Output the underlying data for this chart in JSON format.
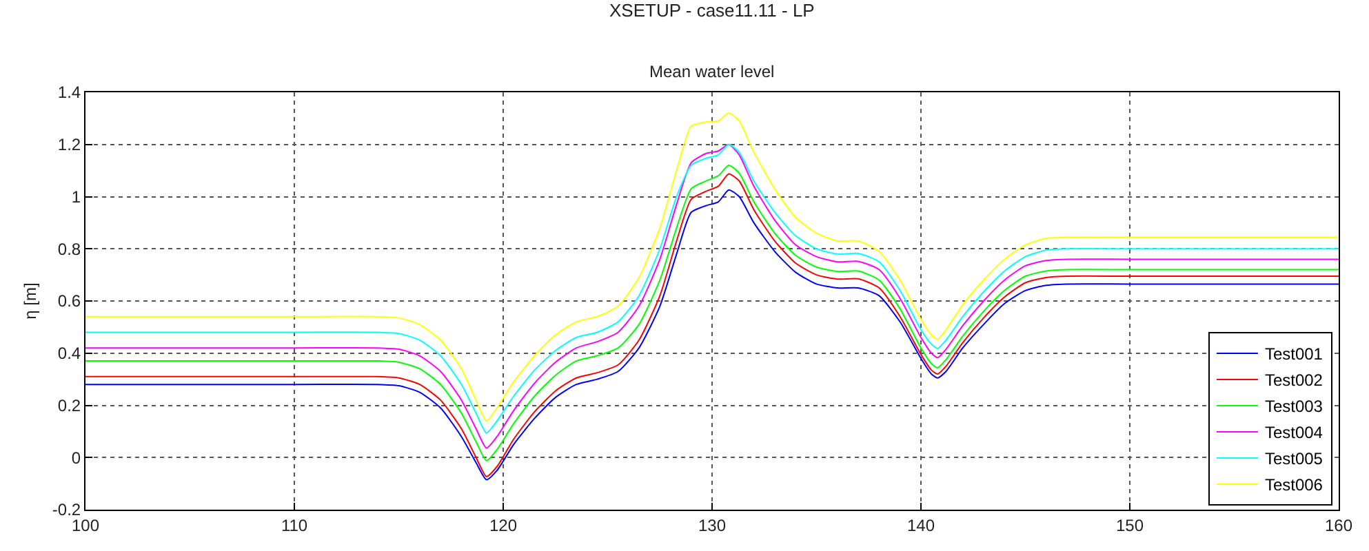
{
  "chart_data": {
    "type": "line",
    "title": "XSETUP - case11.11 - LP",
    "subtitle": "Mean water level",
    "ylabel": "η [m]",
    "x": [
      100,
      110,
      114,
      115,
      116,
      117,
      118,
      118.7,
      119.2,
      119.7,
      120.5,
      121.5,
      122.5,
      123.5,
      124.5,
      125.5,
      126.5,
      127.5,
      128.3,
      129,
      129.7,
      130.3,
      130.8,
      131.3,
      132,
      133,
      134,
      135,
      136,
      137,
      138,
      139,
      140,
      140.5,
      140.8,
      141.2,
      142,
      143,
      144,
      145,
      146,
      147,
      150,
      160
    ],
    "series": [
      {
        "name": "Test001",
        "color": "#0000ff",
        "values": [
          0.28,
          0.28,
          0.28,
          0.275,
          0.25,
          0.19,
          0.08,
          -0.02,
          -0.085,
          -0.05,
          0.05,
          0.15,
          0.23,
          0.28,
          0.3,
          0.33,
          0.42,
          0.58,
          0.78,
          0.94,
          0.965,
          0.98,
          1.026,
          1.0,
          0.9,
          0.79,
          0.71,
          0.665,
          0.65,
          0.65,
          0.62,
          0.52,
          0.38,
          0.32,
          0.305,
          0.33,
          0.42,
          0.51,
          0.59,
          0.64,
          0.66,
          0.665,
          0.665,
          0.665
        ]
      },
      {
        "name": "Test002",
        "color": "#ff0000",
        "values": [
          0.31,
          0.31,
          0.31,
          0.305,
          0.28,
          0.22,
          0.11,
          0.0,
          -0.073,
          -0.035,
          0.07,
          0.175,
          0.255,
          0.305,
          0.325,
          0.355,
          0.45,
          0.62,
          0.83,
          0.99,
          1.02,
          1.04,
          1.087,
          1.06,
          0.95,
          0.83,
          0.745,
          0.7,
          0.684,
          0.685,
          0.65,
          0.54,
          0.395,
          0.335,
          0.32,
          0.35,
          0.44,
          0.535,
          0.615,
          0.67,
          0.69,
          0.695,
          0.695,
          0.695
        ]
      },
      {
        "name": "Test003",
        "color": "#00ff00",
        "values": [
          0.37,
          0.37,
          0.37,
          0.365,
          0.34,
          0.28,
          0.17,
          0.06,
          -0.012,
          0.03,
          0.13,
          0.235,
          0.315,
          0.37,
          0.39,
          0.42,
          0.51,
          0.68,
          0.88,
          1.03,
          1.06,
          1.08,
          1.12,
          1.09,
          0.98,
          0.86,
          0.775,
          0.73,
          0.713,
          0.715,
          0.68,
          0.57,
          0.42,
          0.36,
          0.344,
          0.375,
          0.465,
          0.56,
          0.64,
          0.695,
          0.715,
          0.72,
          0.72,
          0.72
        ]
      },
      {
        "name": "Test004",
        "color": "#ff00ff",
        "values": [
          0.42,
          0.42,
          0.42,
          0.415,
          0.39,
          0.33,
          0.22,
          0.11,
          0.036,
          0.08,
          0.18,
          0.285,
          0.365,
          0.42,
          0.444,
          0.48,
          0.58,
          0.76,
          0.97,
          1.13,
          1.165,
          1.175,
          1.2,
          1.16,
          1.04,
          0.91,
          0.815,
          0.77,
          0.75,
          0.752,
          0.72,
          0.61,
          0.46,
          0.4,
          0.383,
          0.415,
          0.505,
          0.6,
          0.68,
          0.735,
          0.755,
          0.76,
          0.76,
          0.76
        ]
      },
      {
        "name": "Test005",
        "color": "#00ffff",
        "values": [
          0.48,
          0.48,
          0.48,
          0.475,
          0.45,
          0.39,
          0.28,
          0.17,
          0.094,
          0.14,
          0.235,
          0.335,
          0.41,
          0.46,
          0.48,
          0.52,
          0.62,
          0.8,
          1.0,
          1.12,
          1.147,
          1.16,
          1.2,
          1.17,
          1.06,
          0.94,
          0.85,
          0.8,
          0.78,
          0.782,
          0.75,
          0.64,
          0.49,
          0.435,
          0.418,
          0.45,
          0.54,
          0.635,
          0.715,
          0.77,
          0.795,
          0.8,
          0.8,
          0.8
        ]
      },
      {
        "name": "Test006",
        "color": "#ffff00",
        "values": [
          0.54,
          0.54,
          0.54,
          0.535,
          0.51,
          0.45,
          0.34,
          0.22,
          0.14,
          0.19,
          0.29,
          0.39,
          0.47,
          0.52,
          0.54,
          0.58,
          0.69,
          0.88,
          1.1,
          1.27,
          1.286,
          1.29,
          1.32,
          1.29,
          1.17,
          1.03,
          0.92,
          0.86,
          0.83,
          0.83,
          0.79,
          0.68,
          0.53,
          0.47,
          0.453,
          0.49,
          0.585,
          0.68,
          0.76,
          0.815,
          0.84,
          0.844,
          0.844,
          0.844
        ]
      }
    ],
    "xlim": [
      100,
      160
    ],
    "xticks": [
      100,
      110,
      120,
      130,
      140,
      150,
      160
    ],
    "ylim": [
      -0.2,
      1.4
    ],
    "yticks": [
      -0.2,
      0,
      0.2,
      0.4,
      0.6,
      0.8,
      1,
      1.2,
      1.4
    ],
    "grid": true,
    "legend": "bottom right",
    "line_style": "solid",
    "marker": "none"
  }
}
